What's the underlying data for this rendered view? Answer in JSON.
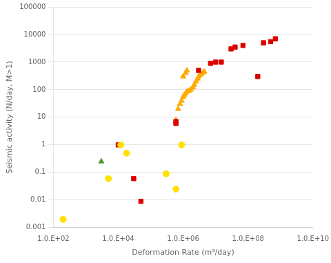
{
  "chart_data": {
    "type": "scatter",
    "xlabel": "Deformation Rate (m³/day)",
    "ylabel": "Seismic activity (N/day, M>1)",
    "log": true,
    "grid": "y",
    "xlim": [
      100,
      10000000000
    ],
    "ylim": [
      0.001,
      100000
    ],
    "xticks": [
      {
        "value": 100,
        "label": "1.0.E+02"
      },
      {
        "value": 10000,
        "label": "1.0.E+04"
      },
      {
        "value": 1000000,
        "label": "1.0.E+06"
      },
      {
        "value": 100000000,
        "label": "1.0.E+08"
      },
      {
        "value": 10000000000,
        "label": "1.0.E+10"
      }
    ],
    "yticks": [
      0.001,
      0.01,
      0.1,
      1,
      10,
      100,
      1000,
      10000,
      100000
    ],
    "series": [
      {
        "color": "#FFE000",
        "marker": "circle",
        "x": [
          200,
          5000,
          12000,
          18000,
          300000,
          600000,
          900000
        ],
        "values": [
          0.002,
          0.06,
          1.0,
          0.5,
          0.09,
          0.025,
          1.0
        ]
      },
      {
        "color": "#DD0000",
        "marker": "square",
        "x": [
          10000,
          30000,
          50000,
          600000,
          600000,
          3000000,
          7000000,
          10000000,
          15000000,
          30000000,
          40000000,
          70000000,
          200000000,
          300000000,
          500000000,
          700000000
        ],
        "values": [
          1.0,
          0.06,
          0.009,
          6.0,
          7.0,
          500.0,
          900.0,
          1000.0,
          1000.0,
          3000.0,
          3500.0,
          4000.0,
          300.0,
          5000.0,
          5500.0,
          7000.0
        ]
      },
      {
        "color": "#FFAA00",
        "marker": "triangle",
        "x": [
          600000,
          700000,
          800000,
          900000,
          1000000,
          1100000,
          1200000,
          1300000,
          1500000,
          1700000,
          2000000,
          2200000,
          2500000,
          2800000,
          3000000,
          3500000,
          4000000,
          4500000,
          1000000,
          1200000,
          1300000
        ],
        "values": [
          8.0,
          20.0,
          30.0,
          40.0,
          55.0,
          65.0,
          75.0,
          85.0,
          90.0,
          100.0,
          120.0,
          150.0,
          200.0,
          250.0,
          300.0,
          350.0,
          400.0,
          450.0,
          300.0,
          400.0,
          500.0
        ]
      },
      {
        "color": "#559933",
        "marker": "triangle",
        "x": [
          3000
        ],
        "values": [
          0.25
        ]
      }
    ]
  }
}
